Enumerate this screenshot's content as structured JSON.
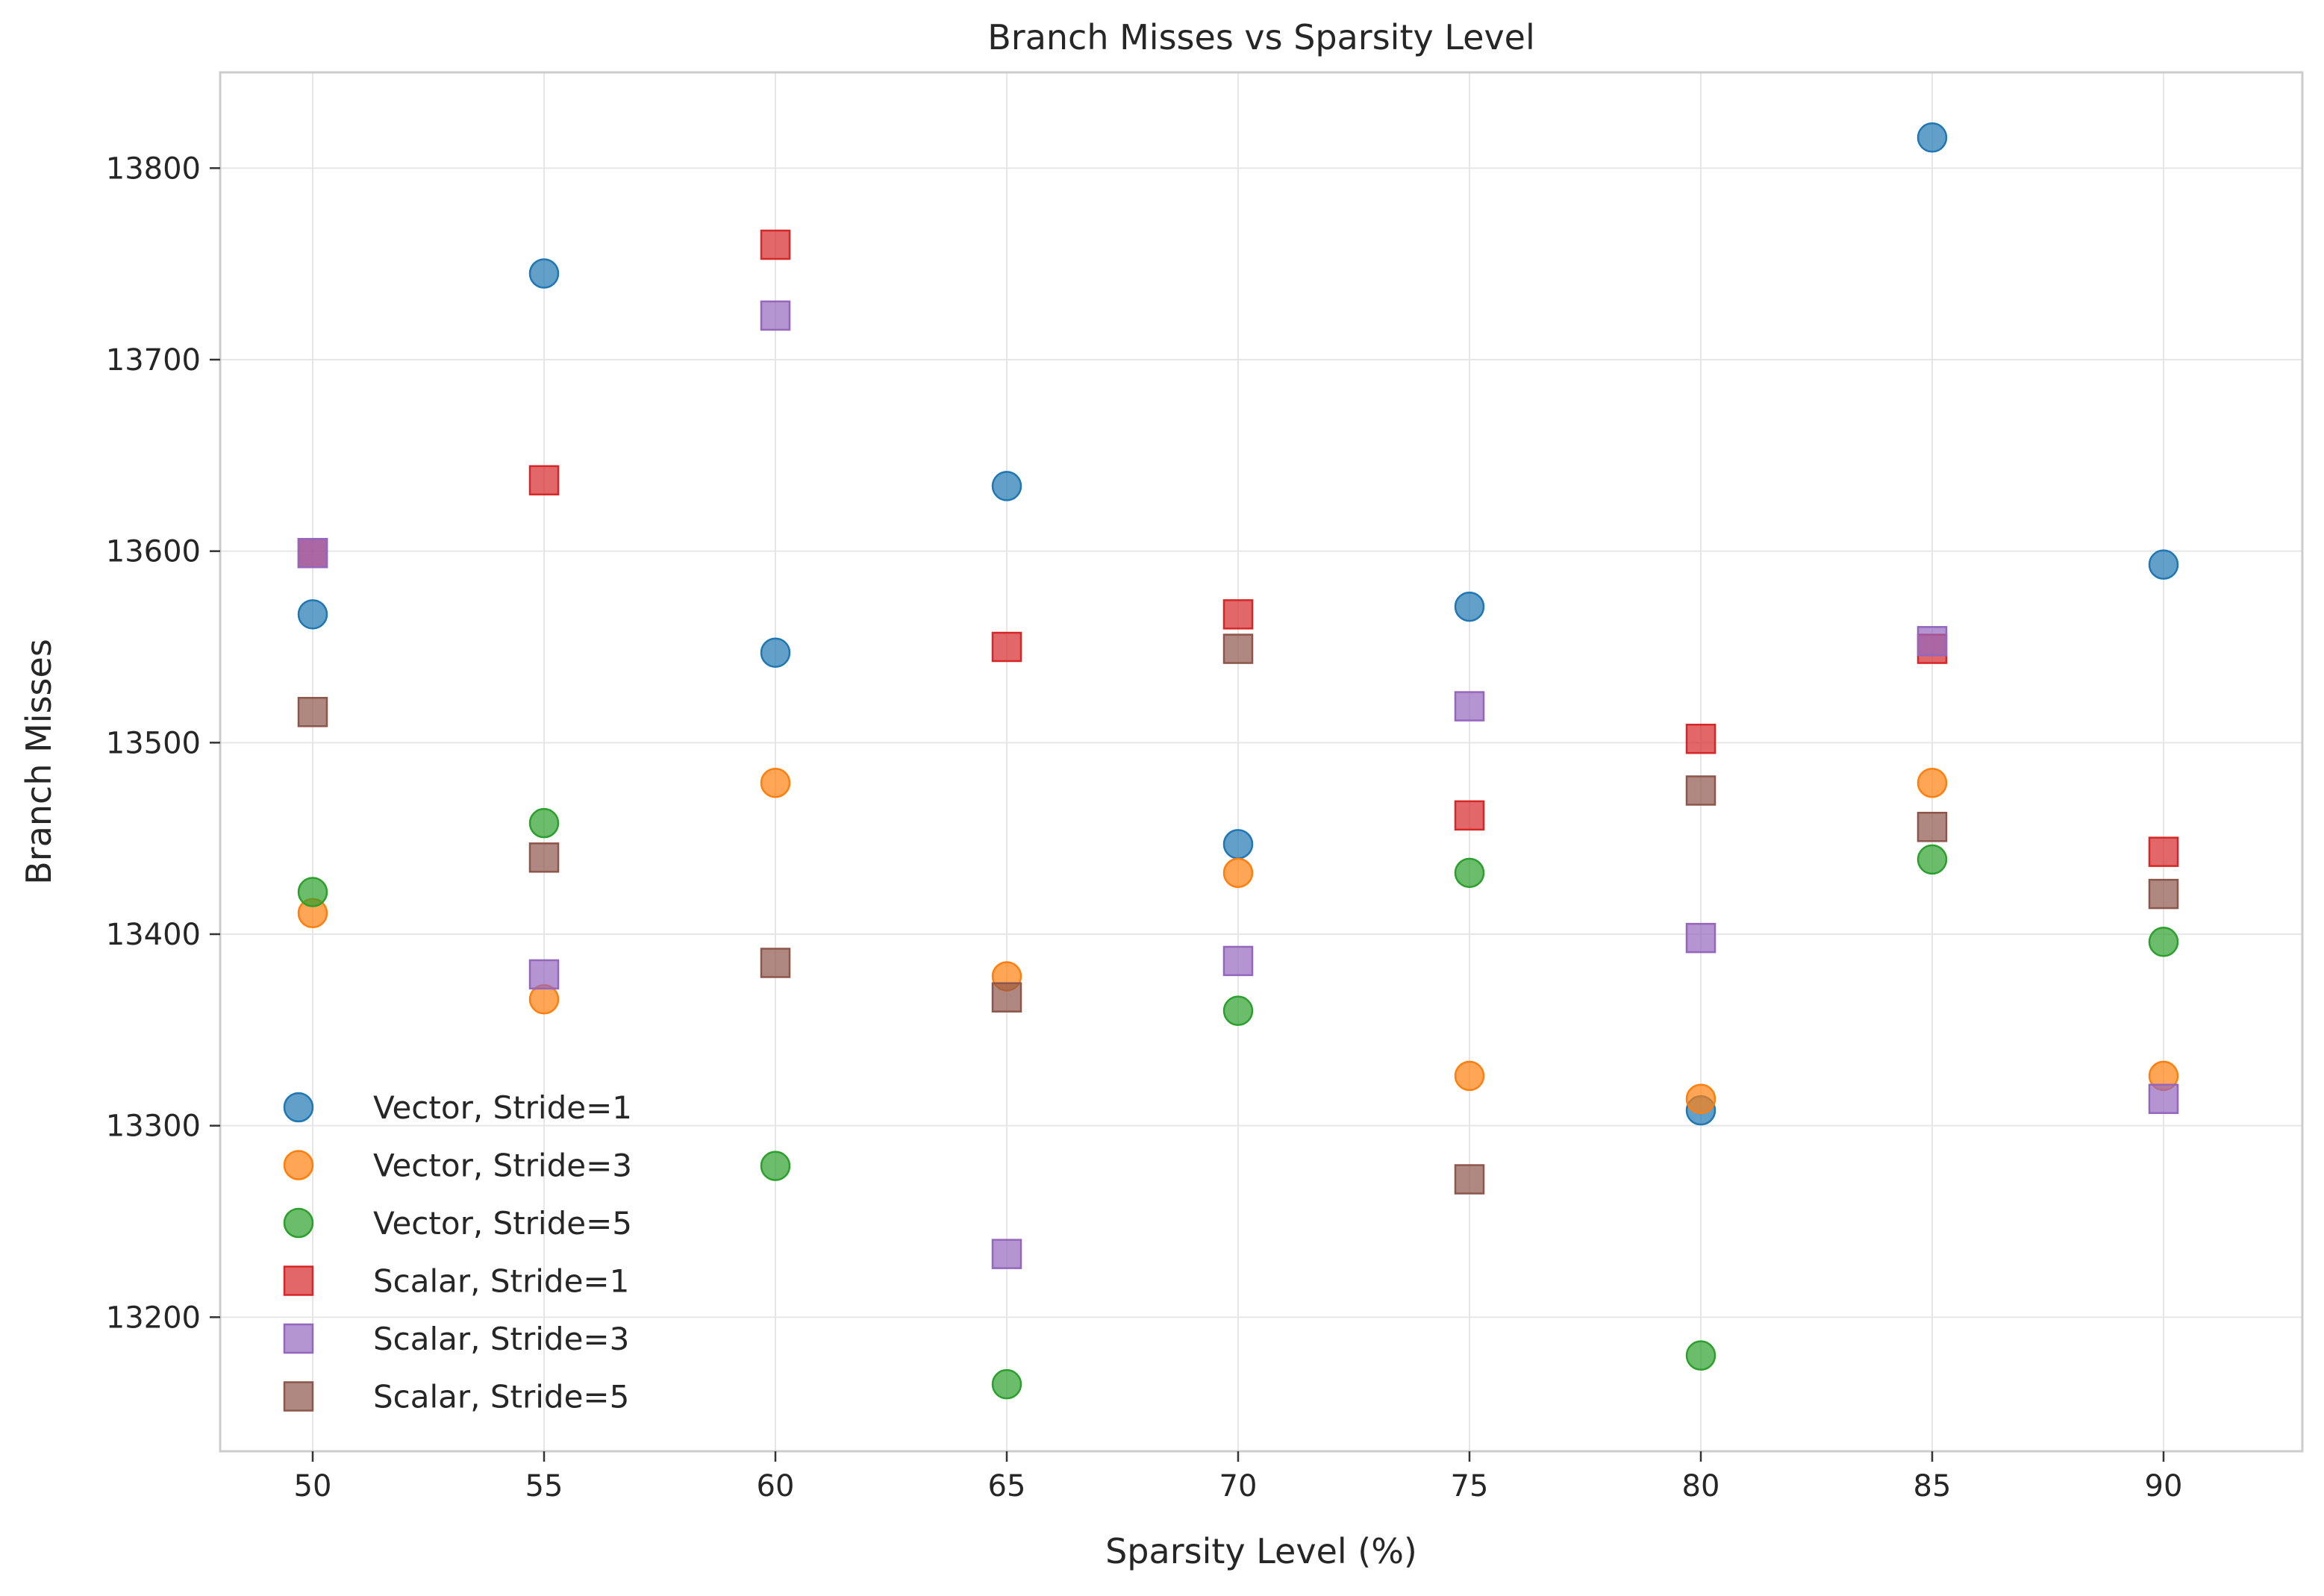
{
  "chart_data": {
    "type": "scatter",
    "title": "Branch Misses vs Sparsity Level",
    "xlabel": "Sparsity Level (%)",
    "ylabel": "Branch Misses",
    "xlim": [
      48,
      93
    ],
    "ylim": [
      13130,
      13850
    ],
    "xticks": [
      50,
      55,
      60,
      65,
      70,
      75,
      80,
      85,
      90
    ],
    "yticks": [
      13200,
      13300,
      13400,
      13500,
      13600,
      13700,
      13800
    ],
    "grid": true,
    "legend_position": "lower-left",
    "series": [
      {
        "name": "Vector, Stride=1",
        "marker": "circle",
        "color": "#1f77b4",
        "x": [
          50,
          55,
          60,
          65,
          70,
          75,
          80,
          85,
          90
        ],
        "y": [
          13567,
          13745,
          13547,
          13634,
          13447,
          13571,
          13308,
          13816,
          13593
        ]
      },
      {
        "name": "Vector, Stride=3",
        "marker": "circle",
        "color": "#ff7f0e",
        "x": [
          50,
          55,
          60,
          65,
          70,
          75,
          80,
          85,
          90
        ],
        "y": [
          13411,
          13366,
          13479,
          13378,
          13432,
          13326,
          13314,
          13479,
          13326
        ]
      },
      {
        "name": "Vector, Stride=5",
        "marker": "circle",
        "color": "#2ca02c",
        "x": [
          50,
          55,
          60,
          65,
          70,
          75,
          80,
          85,
          90
        ],
        "y": [
          13422,
          13458,
          13279,
          13165,
          13360,
          13432,
          13180,
          13439,
          13396
        ]
      },
      {
        "name": "Scalar, Stride=1",
        "marker": "square",
        "color": "#d62728",
        "x": [
          50,
          55,
          60,
          65,
          70,
          75,
          80,
          85,
          90
        ],
        "y": [
          13599,
          13637,
          13760,
          13550,
          13567,
          13462,
          13502,
          13549,
          13443
        ]
      },
      {
        "name": "Scalar, Stride=3",
        "marker": "square",
        "color": "#9467bd",
        "x": [
          50,
          55,
          60,
          65,
          70,
          75,
          80,
          85,
          90
        ],
        "y": [
          13599,
          13379,
          13723,
          13233,
          13386,
          13519,
          13398,
          13553,
          13314
        ]
      },
      {
        "name": "Scalar, Stride=5",
        "marker": "square",
        "color": "#8c564b",
        "x": [
          50,
          55,
          60,
          65,
          70,
          75,
          80,
          85,
          90
        ],
        "y": [
          13516,
          13440,
          13385,
          13367,
          13549,
          13272,
          13475,
          13456,
          13421
        ]
      }
    ]
  }
}
